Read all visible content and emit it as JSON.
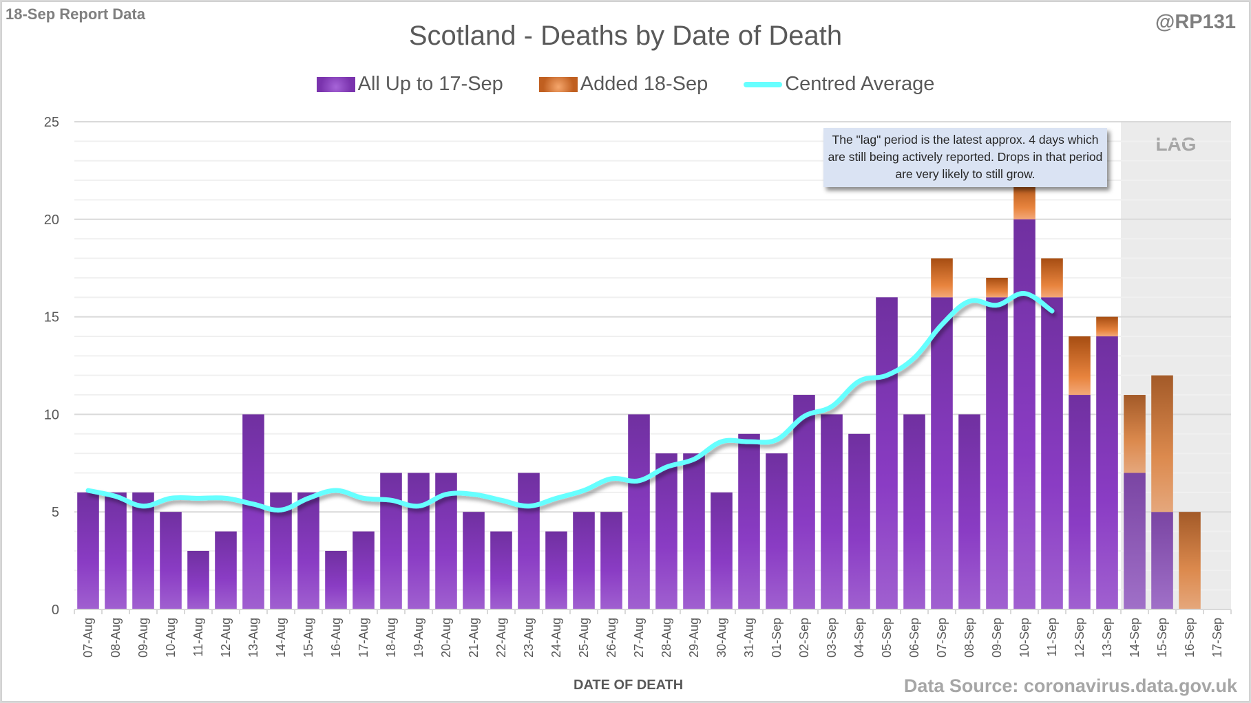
{
  "header": {
    "report_label": "18-Sep Report Data",
    "handle": "@RP131",
    "title": "Scotland - Deaths by Date of Death",
    "source": "Data Source: coronavirus.data.gov.uk"
  },
  "annotation": {
    "text": "The \"lag\" period is the latest approx. 4 days which are still being actively reported.  Drops in that period are very likely to still grow.",
    "lag_label": "LAG",
    "lag_start_category": "14-Sep",
    "lag_end_category": "17-Sep"
  },
  "colors": {
    "existing": "#7a33ad",
    "added": "#d8712f",
    "average": "#66ffff",
    "lag_shade": "#ebebeb",
    "annotation_bg": "#dae3f3"
  },
  "chart_data": {
    "type": "bar",
    "stacked": true,
    "title": "Scotland - Deaths by Date of Death",
    "xlabel": "DATE OF DEATH",
    "ylabel": "",
    "ylim": [
      0,
      25
    ],
    "yticks": [
      0,
      5,
      10,
      15,
      20,
      25
    ],
    "grid": true,
    "legend_position": "top",
    "categories": [
      "07-Aug",
      "08-Aug",
      "09-Aug",
      "10-Aug",
      "11-Aug",
      "12-Aug",
      "13-Aug",
      "14-Aug",
      "15-Aug",
      "16-Aug",
      "17-Aug",
      "18-Aug",
      "19-Aug",
      "20-Aug",
      "21-Aug",
      "22-Aug",
      "23-Aug",
      "24-Aug",
      "25-Aug",
      "26-Aug",
      "27-Aug",
      "28-Aug",
      "29-Aug",
      "30-Aug",
      "31-Aug",
      "01-Sep",
      "02-Sep",
      "03-Sep",
      "04-Sep",
      "05-Sep",
      "06-Sep",
      "07-Sep",
      "08-Sep",
      "09-Sep",
      "10-Sep",
      "11-Sep",
      "12-Sep",
      "13-Sep",
      "14-Sep",
      "15-Sep",
      "16-Sep",
      "17-Sep"
    ],
    "series": [
      {
        "name": "All Up to 17-Sep",
        "kind": "bar",
        "values": [
          6,
          6,
          6,
          5,
          3,
          4,
          10,
          6,
          6,
          3,
          4,
          7,
          7,
          7,
          5,
          4,
          7,
          4,
          5,
          5,
          10,
          8,
          8,
          6,
          9,
          8,
          11,
          10,
          9,
          16,
          10,
          16,
          10,
          16,
          20,
          16,
          11,
          14,
          7,
          5,
          0,
          0
        ]
      },
      {
        "name": "Added 18-Sep",
        "kind": "bar",
        "values": [
          0,
          0,
          0,
          0,
          0,
          0,
          0,
          0,
          0,
          0,
          0,
          0,
          0,
          0,
          0,
          0,
          0,
          0,
          0,
          0,
          0,
          0,
          0,
          0,
          0,
          0,
          0,
          0,
          0,
          0,
          0,
          2,
          0,
          1,
          2,
          2,
          3,
          1,
          4,
          7,
          5,
          0
        ]
      },
      {
        "name": "Centred Average",
        "kind": "line",
        "values": [
          6.1,
          5.8,
          5.3,
          5.7,
          5.7,
          5.7,
          5.4,
          5.1,
          5.7,
          6.1,
          5.7,
          5.6,
          5.3,
          5.9,
          5.9,
          5.6,
          5.3,
          5.7,
          6.1,
          6.7,
          6.6,
          7.3,
          7.7,
          8.6,
          8.6,
          8.7,
          9.9,
          10.4,
          11.7,
          12.0,
          12.9,
          14.6,
          15.8,
          15.6,
          16.2,
          15.3,
          null,
          null,
          null,
          null,
          null,
          null
        ]
      }
    ]
  }
}
